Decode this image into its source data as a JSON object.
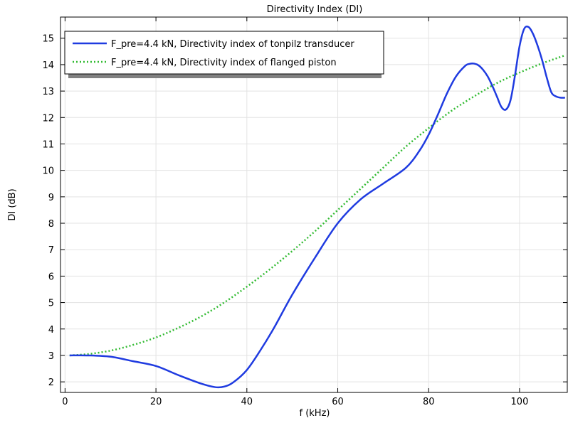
{
  "chart_data": {
    "type": "line",
    "title": "Directivity Index (DI)",
    "xlabel": "f (kHz)",
    "ylabel": "DI (dB)",
    "xlim": [
      -1,
      110.5
    ],
    "ylim": [
      1.6,
      15.8
    ],
    "x_ticks": [
      0,
      20,
      40,
      60,
      80,
      100
    ],
    "y_ticks": [
      2,
      3,
      4,
      5,
      6,
      7,
      8,
      9,
      10,
      11,
      12,
      13,
      14,
      15
    ],
    "grid": true,
    "legend_position": "top-left",
    "series": [
      {
        "name": "F_pre=4.4 kN, Directivity index of tonpilz transducer",
        "color": "#1f3be0",
        "style": "solid",
        "x": [
          1,
          5,
          10,
          15,
          20,
          25,
          30,
          33,
          35,
          37,
          40,
          43,
          46,
          50,
          55,
          60,
          65,
          70,
          75,
          78,
          80,
          82,
          84,
          86,
          88,
          89,
          90,
          91,
          92,
          93,
          94,
          95,
          96,
          97,
          98,
          99,
          100,
          101,
          102,
          103,
          104,
          105,
          106,
          107,
          108,
          109,
          110
        ],
        "y": [
          3.0,
          3.0,
          2.95,
          2.78,
          2.6,
          2.25,
          1.93,
          1.8,
          1.82,
          1.98,
          2.45,
          3.2,
          4.05,
          5.3,
          6.7,
          8.0,
          8.9,
          9.5,
          10.1,
          10.75,
          11.35,
          12.1,
          12.9,
          13.55,
          13.95,
          14.03,
          14.04,
          13.97,
          13.8,
          13.55,
          13.2,
          12.8,
          12.4,
          12.3,
          12.65,
          13.6,
          14.7,
          15.35,
          15.42,
          15.15,
          14.7,
          14.15,
          13.5,
          12.95,
          12.8,
          12.75,
          12.75
        ]
      },
      {
        "name": "F_pre=4.4 kN, Directivity index of flanged piston",
        "color": "#33bb33",
        "style": "dotted",
        "x": [
          1,
          5,
          10,
          15,
          20,
          25,
          30,
          35,
          40,
          45,
          50,
          55,
          60,
          65,
          70,
          75,
          80,
          85,
          90,
          95,
          100,
          105,
          110
        ],
        "y": [
          3.0,
          3.05,
          3.18,
          3.4,
          3.68,
          4.05,
          4.48,
          5.0,
          5.6,
          6.25,
          6.95,
          7.7,
          8.5,
          9.3,
          10.1,
          10.9,
          11.6,
          12.25,
          12.8,
          13.3,
          13.7,
          14.05,
          14.35
        ]
      }
    ]
  }
}
